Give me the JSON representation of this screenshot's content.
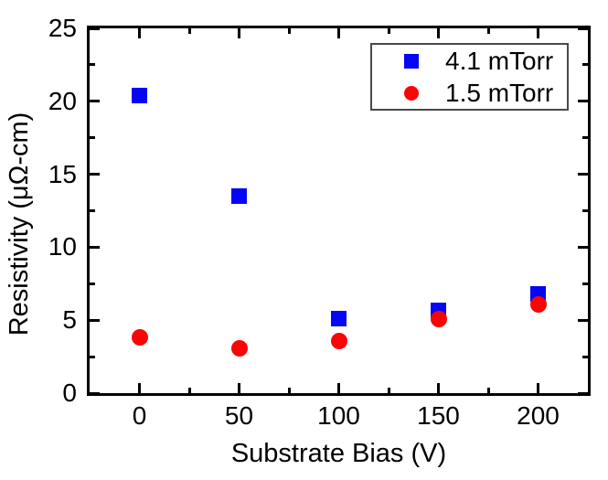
{
  "figure": {
    "background": "#ffffff",
    "axis_color": "#000000"
  },
  "chart_data": {
    "type": "scatter",
    "title": "",
    "xlabel": "Substrate Bias (V)",
    "ylabel": "Resistivity (μΩ-cm)",
    "xlim": [
      -25,
      225
    ],
    "ylim": [
      0,
      25
    ],
    "x_major_ticks": [
      0,
      50,
      100,
      150,
      200
    ],
    "x_minor_ticks": [
      25,
      75,
      125,
      175
    ],
    "y_major_ticks": [
      0,
      5,
      10,
      15,
      20,
      25
    ],
    "y_minor_ticks": [
      2.5,
      7.5,
      12.5,
      17.5,
      22.5
    ],
    "grid": false,
    "legend_position": "top-right",
    "legend_border_color": "#4a4a4a",
    "x": [
      0,
      50,
      100,
      150,
      200
    ],
    "series": [
      {
        "name": "4.1 mTorr",
        "marker": "square",
        "color": "#0505fa",
        "values": [
          20.4,
          13.5,
          5.1,
          5.7,
          6.8
        ]
      },
      {
        "name": "1.5 mTorr",
        "marker": "circle",
        "color": "#fa0505",
        "values": [
          3.8,
          3.1,
          3.6,
          5.1,
          6.1
        ]
      }
    ]
  }
}
